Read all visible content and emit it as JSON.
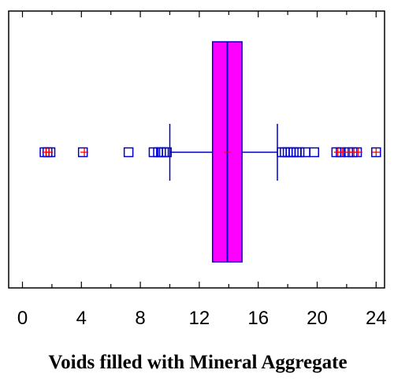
{
  "chart_data": {
    "type": "boxplot",
    "orientation": "horizontal",
    "xlabel": "Voids filled with Mineral Aggregate",
    "ylabel": "",
    "title": "",
    "xlim": [
      -0.8,
      25.1
    ],
    "xticks": [
      0,
      4,
      8,
      12,
      16,
      20,
      24
    ],
    "grid": false,
    "box": {
      "whisker_low": 10.0,
      "q1": 12.9,
      "median": 13.9,
      "q3": 14.9,
      "whisker_high": 17.3,
      "mean": 13.9
    },
    "outliers": [
      1.5,
      1.7,
      1.9,
      4.1,
      7.2,
      8.9,
      9.2,
      9.4,
      9.6,
      9.8,
      17.6,
      17.8,
      18.0,
      18.2,
      18.4,
      18.6,
      18.8,
      19.2,
      19.8,
      21.3,
      21.6,
      22.1,
      22.4,
      22.7,
      24.0
    ],
    "far_outliers": [
      1.6,
      1.8,
      4.2,
      21.4,
      21.7,
      22.2,
      22.5,
      22.8,
      24.0
    ],
    "colors": {
      "box_fill": "#ff00ff",
      "lines": "#0000cc",
      "outlier": "#0000cc",
      "far_outlier_mark": "#ff0000",
      "frame": "#000000"
    }
  }
}
